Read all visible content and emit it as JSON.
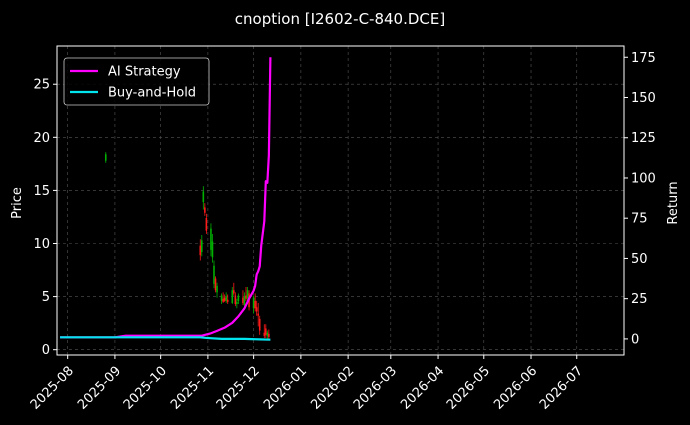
{
  "chart_data": {
    "type": "line",
    "title": "cnoption [I2602-C-840.DCE]",
    "xlabel": "",
    "ylabel": "Price",
    "y2label": "Return",
    "xlim": [
      "2025-07-25",
      "2026-08-01"
    ],
    "ylim": [
      -0.5,
      28.6
    ],
    "y2lim": [
      -10,
      182
    ],
    "x_ticks": [
      "2025-08",
      "2025-09",
      "2025-10",
      "2025-11",
      "2025-12",
      "2026-01",
      "2026-02",
      "2026-03",
      "2026-04",
      "2026-05",
      "2026-06",
      "2026-07"
    ],
    "y_ticks": [
      0,
      5,
      10,
      15,
      20,
      25
    ],
    "y2_ticks": [
      0,
      25,
      50,
      75,
      100,
      125,
      150,
      175
    ],
    "grid": true,
    "legend_position": "top-left",
    "candles": [
      {
        "date": "2025-08-26",
        "open": 17.8,
        "high": 18.6,
        "low": 17.6,
        "close": 18.4
      },
      {
        "date": "2025-10-27",
        "open": 9.8,
        "high": 10.4,
        "low": 8.4,
        "close": 8.9
      },
      {
        "date": "2025-10-28",
        "open": 9.2,
        "high": 10.8,
        "low": 8.8,
        "close": 10.3
      },
      {
        "date": "2025-10-29",
        "open": 13.9,
        "high": 15.4,
        "low": 13.2,
        "close": 14.9
      },
      {
        "date": "2025-10-30",
        "open": 13.4,
        "high": 13.8,
        "low": 12.6,
        "close": 12.9
      },
      {
        "date": "2025-10-31",
        "open": 12.4,
        "high": 12.8,
        "low": 10.9,
        "close": 11.2
      },
      {
        "date": "2025-11-03",
        "open": 9.4,
        "high": 11.9,
        "low": 8.8,
        "close": 11.4
      },
      {
        "date": "2025-11-04",
        "open": 8.7,
        "high": 10.9,
        "low": 8.2,
        "close": 10.2
      },
      {
        "date": "2025-11-05",
        "open": 6.2,
        "high": 8.4,
        "low": 5.8,
        "close": 7.9
      },
      {
        "date": "2025-11-06",
        "open": 6.7,
        "high": 6.9,
        "low": 5.4,
        "close": 5.6
      },
      {
        "date": "2025-11-07",
        "open": 5.4,
        "high": 6.3,
        "low": 4.9,
        "close": 6.0
      },
      {
        "date": "2025-11-10",
        "open": 4.6,
        "high": 5.3,
        "low": 4.3,
        "close": 5.1
      },
      {
        "date": "2025-11-11",
        "open": 4.8,
        "high": 5.4,
        "low": 4.4,
        "close": 4.5
      },
      {
        "date": "2025-11-12",
        "open": 4.9,
        "high": 5.2,
        "low": 4.5,
        "close": 4.6
      },
      {
        "date": "2025-11-13",
        "open": 4.6,
        "high": 5.4,
        "low": 4.4,
        "close": 5.0
      },
      {
        "date": "2025-11-14",
        "open": 4.7,
        "high": 5.2,
        "low": 4.3,
        "close": 4.5
      },
      {
        "date": "2025-11-17",
        "open": 4.4,
        "high": 5.9,
        "low": 4.3,
        "close": 5.6
      },
      {
        "date": "2025-11-18",
        "open": 5.6,
        "high": 6.3,
        "low": 5.1,
        "close": 5.3
      },
      {
        "date": "2025-11-19",
        "open": 5.1,
        "high": 5.4,
        "low": 4.1,
        "close": 4.3
      },
      {
        "date": "2025-11-20",
        "open": 4.3,
        "high": 4.8,
        "low": 3.9,
        "close": 4.5
      },
      {
        "date": "2025-11-21",
        "open": 4.6,
        "high": 5.3,
        "low": 4.3,
        "close": 5.1
      },
      {
        "date": "2025-11-24",
        "open": 4.9,
        "high": 5.6,
        "low": 4.2,
        "close": 4.4
      },
      {
        "date": "2025-11-25",
        "open": 4.2,
        "high": 5.4,
        "low": 3.8,
        "close": 5.0
      },
      {
        "date": "2025-11-26",
        "open": 5.1,
        "high": 5.9,
        "low": 4.6,
        "close": 4.8
      },
      {
        "date": "2025-11-27",
        "open": 4.8,
        "high": 5.9,
        "low": 4.4,
        "close": 5.6
      },
      {
        "date": "2025-11-28",
        "open": 5.3,
        "high": 5.6,
        "low": 3.7,
        "close": 4.0
      },
      {
        "date": "2025-12-01",
        "open": 3.9,
        "high": 5.1,
        "low": 3.4,
        "close": 4.9
      },
      {
        "date": "2025-12-02",
        "open": 4.6,
        "high": 5.3,
        "low": 3.6,
        "close": 3.9
      },
      {
        "date": "2025-12-03",
        "open": 4.0,
        "high": 4.6,
        "low": 3.2,
        "close": 3.6
      },
      {
        "date": "2025-12-04",
        "open": 3.4,
        "high": 4.4,
        "low": 2.2,
        "close": 3.2
      },
      {
        "date": "2025-12-05",
        "open": 2.9,
        "high": 3.2,
        "low": 1.4,
        "close": 1.8
      },
      {
        "date": "2025-12-08",
        "open": 1.6,
        "high": 2.4,
        "low": 1.1,
        "close": 1.3
      },
      {
        "date": "2025-12-09",
        "open": 2.0,
        "high": 2.4,
        "low": 1.1,
        "close": 1.4
      },
      {
        "date": "2025-12-10",
        "open": 1.3,
        "high": 1.8,
        "low": 1.0,
        "close": 1.6
      },
      {
        "date": "2025-12-11",
        "open": 1.5,
        "high": 1.9,
        "low": 1.0,
        "close": 1.2
      }
    ],
    "series": [
      {
        "name": "AI Strategy",
        "color": "#ff00ff",
        "axis": "right",
        "points": [
          [
            "2025-07-27",
            1.0
          ],
          [
            "2025-08-15",
            1.0
          ],
          [
            "2025-09-01",
            1.0
          ],
          [
            "2025-09-08",
            2.0
          ],
          [
            "2025-10-01",
            2.0
          ],
          [
            "2025-10-28",
            2.0
          ],
          [
            "2025-11-03",
            3.5
          ],
          [
            "2025-11-07",
            5.0
          ],
          [
            "2025-11-12",
            7.0
          ],
          [
            "2025-11-17",
            10.0
          ],
          [
            "2025-11-21",
            14.0
          ],
          [
            "2025-11-25",
            19.0
          ],
          [
            "2025-11-28",
            25.0
          ],
          [
            "2025-12-01",
            30.0
          ],
          [
            "2025-12-02",
            33.0
          ],
          [
            "2025-12-03",
            40.0
          ],
          [
            "2025-12-04",
            42.0
          ],
          [
            "2025-12-05",
            45.0
          ],
          [
            "2025-12-06",
            58.0
          ],
          [
            "2025-12-08",
            73.0
          ],
          [
            "2025-12-09",
            98.0
          ],
          [
            "2025-12-10",
            97.0
          ],
          [
            "2025-12-11",
            114.0
          ],
          [
            "2025-12-12",
            175.0
          ]
        ]
      },
      {
        "name": "Buy-and-Hold",
        "color": "#00e5ee",
        "axis": "right",
        "points": [
          [
            "2025-07-27",
            1.0
          ],
          [
            "2025-09-01",
            1.0
          ],
          [
            "2025-10-27",
            1.0
          ],
          [
            "2025-10-31",
            0.6
          ],
          [
            "2025-11-10",
            0.0
          ],
          [
            "2025-11-25",
            0.0
          ],
          [
            "2025-12-05",
            -0.3
          ],
          [
            "2025-12-12",
            -0.5
          ]
        ]
      }
    ]
  }
}
